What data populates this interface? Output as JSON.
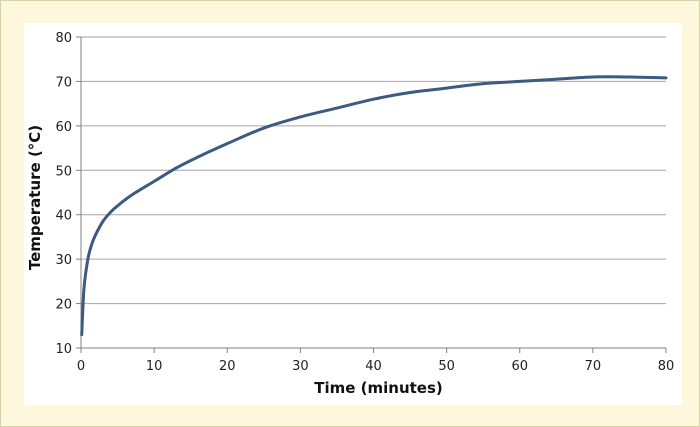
{
  "chart_data": {
    "type": "line",
    "title": "",
    "xlabel": "Time (minutes)",
    "ylabel": "Temperature (°C)",
    "xlim": [
      0,
      80
    ],
    "ylim": [
      10,
      80
    ],
    "xticks": [
      0,
      10,
      20,
      30,
      40,
      50,
      60,
      70,
      80
    ],
    "yticks": [
      10,
      20,
      30,
      40,
      50,
      60,
      70,
      80
    ],
    "grid": "horizontal",
    "legend": "none",
    "colors": {
      "line": "#3d5a80",
      "grid": "#a6a6a6",
      "axis": "#808080",
      "background": "#fdf8dc"
    },
    "series": [
      {
        "x": [
          0.1,
          0.3,
          0.5,
          1,
          1.5,
          2,
          3,
          4,
          5,
          7,
          10,
          13,
          16,
          20,
          25,
          30,
          35,
          40,
          45,
          50,
          55,
          60,
          65,
          70,
          75,
          80
        ],
        "y": [
          13,
          20.5,
          25,
          30.5,
          33.5,
          35.5,
          38.5,
          40.5,
          42,
          44.5,
          47.5,
          50.5,
          53,
          56,
          59.5,
          62,
          64,
          66,
          67.5,
          68.5,
          69.5,
          70,
          70.5,
          71,
          71,
          70.8
        ]
      }
    ]
  }
}
